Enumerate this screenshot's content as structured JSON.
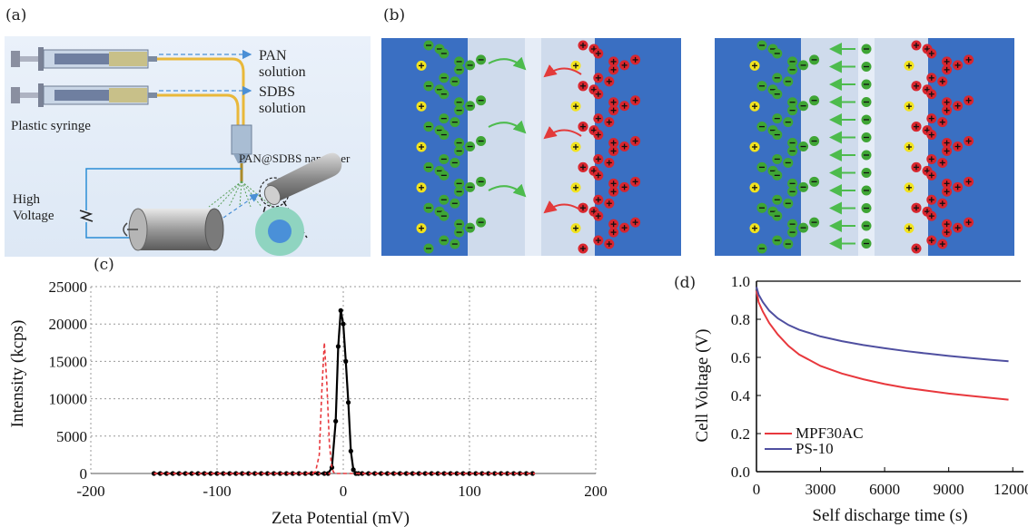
{
  "panels": {
    "a": {
      "label": "(a)",
      "pan_solution": [
        "PAN",
        "solution"
      ],
      "sdbs_solution": [
        "SDBS",
        "solution"
      ],
      "plastic_syringe": "Plastic syringe",
      "nanofiber": "PAN@SDBS nanofiber",
      "high_voltage": [
        "High",
        "Voltage"
      ]
    },
    "b": {
      "label": "(b)"
    },
    "c": {
      "label": "(c)"
    },
    "d": {
      "label": "(d)"
    }
  },
  "colors": {
    "electrode_blue": "#3a6fc2",
    "separator_light": "#cfdbec",
    "green_ion": "#3fa535",
    "red_ion": "#d8262e",
    "yellow_ion": "#f2e31e",
    "arrow_green": "#4dbb4d",
    "arrow_red": "#e33a3a",
    "series_red": "#e8383d",
    "series_blue": "#4f4fa0",
    "series_black": "#000000"
  },
  "chart_data": [
    {
      "panel": "c",
      "type": "line",
      "xlabel": "Zeta Potential (mV)",
      "ylabel": "Intensity (kcps)",
      "xlim": [
        -200,
        200
      ],
      "ylim": [
        0,
        25000
      ],
      "xticks": [
        -200,
        -100,
        0,
        100,
        200
      ],
      "yticks": [
        0,
        5000,
        10000,
        15000,
        20000,
        25000
      ],
      "grid": true,
      "series": [
        {
          "color": "#000000",
          "style": "solid-markers",
          "x": [
            -150,
            -145,
            -140,
            -135,
            -130,
            -125,
            -120,
            -115,
            -110,
            -105,
            -100,
            -95,
            -90,
            -85,
            -80,
            -75,
            -70,
            -65,
            -60,
            -55,
            -50,
            -45,
            -40,
            -35,
            -30,
            -25,
            -20,
            -15,
            -12,
            -9,
            -6,
            -4,
            -2,
            0,
            2,
            4,
            6,
            8,
            10,
            12,
            15,
            20,
            25,
            30,
            35,
            40,
            45,
            50,
            55,
            60,
            65,
            70,
            75,
            80,
            85,
            90,
            95,
            100,
            105,
            110,
            115,
            120,
            125,
            130,
            135,
            140,
            145,
            150
          ],
          "y": [
            0,
            0,
            0,
            0,
            0,
            0,
            0,
            0,
            0,
            0,
            0,
            0,
            0,
            0,
            0,
            0,
            0,
            0,
            0,
            0,
            0,
            0,
            0,
            0,
            0,
            0,
            0,
            0,
            0,
            800,
            7000,
            17000,
            21800,
            20000,
            15000,
            9500,
            3000,
            500,
            0,
            0,
            0,
            0,
            0,
            0,
            0,
            0,
            0,
            0,
            0,
            0,
            0,
            0,
            0,
            0,
            0,
            0,
            0,
            0,
            0,
            0,
            0,
            0,
            0,
            0,
            0,
            0,
            0,
            0
          ]
        },
        {
          "color": "#e8383d",
          "style": "dashed",
          "x": [
            -150,
            -30,
            -22,
            -19,
            -17,
            -15,
            -13,
            -11,
            -9,
            -7,
            -4,
            0,
            150
          ],
          "y": [
            0,
            0,
            200,
            2500,
            11000,
            17500,
            12000,
            4000,
            600,
            0,
            0,
            0,
            0
          ]
        }
      ]
    },
    {
      "panel": "d",
      "type": "line",
      "xlabel": "Self discharge time (s)",
      "ylabel": "Cell Voltage (V)",
      "xlim": [
        0,
        12000
      ],
      "ylim": [
        0.0,
        1.0
      ],
      "xticks": [
        0,
        3000,
        6000,
        9000,
        12000
      ],
      "yticks": [
        0.0,
        0.2,
        0.4,
        0.6,
        0.8,
        1.0
      ],
      "legend_position": "bottom-left",
      "series": [
        {
          "name": "MPF30AC",
          "color": "#e8383d",
          "x": [
            0,
            100,
            300,
            600,
            1000,
            1500,
            2000,
            3000,
            4000,
            5000,
            6000,
            7000,
            8000,
            9000,
            10000,
            11000,
            11800
          ],
          "y": [
            0.95,
            0.89,
            0.84,
            0.78,
            0.72,
            0.66,
            0.615,
            0.555,
            0.515,
            0.485,
            0.46,
            0.44,
            0.425,
            0.41,
            0.398,
            0.387,
            0.378
          ]
        },
        {
          "name": "PS-10",
          "color": "#4f4fa0",
          "x": [
            0,
            100,
            300,
            600,
            1000,
            1500,
            2000,
            3000,
            4000,
            5000,
            6000,
            7000,
            8000,
            9000,
            10000,
            11000,
            11800
          ],
          "y": [
            0.97,
            0.93,
            0.89,
            0.845,
            0.805,
            0.77,
            0.745,
            0.71,
            0.685,
            0.665,
            0.648,
            0.633,
            0.62,
            0.608,
            0.597,
            0.587,
            0.58
          ]
        }
      ]
    }
  ]
}
